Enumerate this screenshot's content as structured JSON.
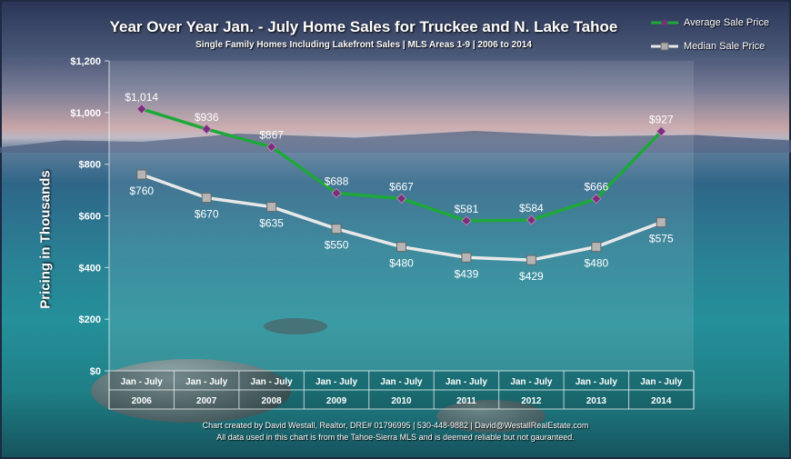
{
  "chart_data": {
    "type": "line",
    "title": "Year Over Year Jan. - July Home Sales for Truckee and N. Lake Tahoe",
    "subtitle": "Single Family Homes Including Lakefront Sales | MLS Areas 1-9 | 2006 to 2014",
    "ylabel": "Pricing in Thousands",
    "ylim": [
      0,
      1200
    ],
    "yticks": [
      "$0",
      "$200",
      "$400",
      "$600",
      "$800",
      "$1,000",
      "$1,200"
    ],
    "categories": [
      "2006",
      "2007",
      "2008",
      "2009",
      "2010",
      "2011",
      "2012",
      "2013",
      "2014"
    ],
    "category_top_label": "Jan - July",
    "series": [
      {
        "name": "Average Sale Price",
        "color": "#1fa83a",
        "marker": "diamond",
        "values": [
          1014,
          936,
          867,
          688,
          667,
          581,
          584,
          666,
          927
        ],
        "labels": [
          "$1,014",
          "$936",
          "$867",
          "$688",
          "$667",
          "$581",
          "$584",
          "$666",
          "$927"
        ]
      },
      {
        "name": "Median Sale Price",
        "color": "#e8e8e8",
        "marker": "square",
        "values": [
          760,
          670,
          635,
          550,
          480,
          439,
          429,
          480,
          575
        ],
        "labels": [
          "$760",
          "$670",
          "$635",
          "$550",
          "$480",
          "$439",
          "$429",
          "$480",
          "$575"
        ]
      }
    ],
    "legend": "top-right",
    "grid": false
  },
  "footer": {
    "line1": "Chart created by David Westall, Realtor, DRE# 01796995 | 530-448-9882 | David@WestallRealEstate.com",
    "line2": "All data used in this chart is from the Tahoe-Sierra MLS and is deemed reliable but  not gauranteed."
  }
}
